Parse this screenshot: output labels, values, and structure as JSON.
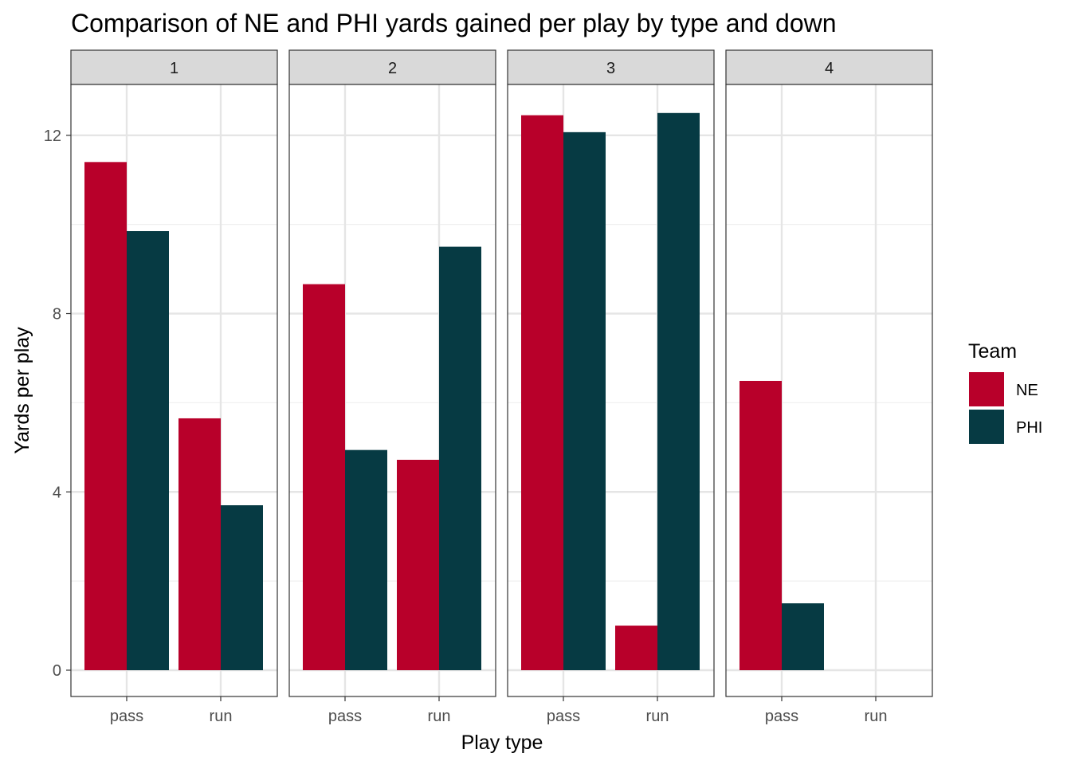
{
  "chart_data": {
    "type": "bar",
    "title": "Comparison of NE and PHI yards gained per play by type and down",
    "xlabel": "Play type",
    "ylabel": "Yards per play",
    "facets": [
      "1",
      "2",
      "3",
      "4"
    ],
    "categories": [
      "pass",
      "run"
    ],
    "ylim": [
      -0.59,
      13.14
    ],
    "yticks": [
      0,
      4,
      8,
      12
    ],
    "grid": true,
    "legend": {
      "title": "Team",
      "placement": "right"
    },
    "series": [
      {
        "name": "NE",
        "color": "#B8002A",
        "values": [
          [
            11.4,
            5.65
          ],
          [
            8.66,
            4.72
          ],
          [
            12.45,
            1.0
          ],
          [
            6.49,
            null
          ]
        ]
      },
      {
        "name": "PHI",
        "color": "#063A43",
        "values": [
          [
            9.85,
            3.7
          ],
          [
            4.94,
            9.5
          ],
          [
            12.07,
            12.5
          ],
          [
            1.5,
            null
          ]
        ]
      }
    ]
  }
}
